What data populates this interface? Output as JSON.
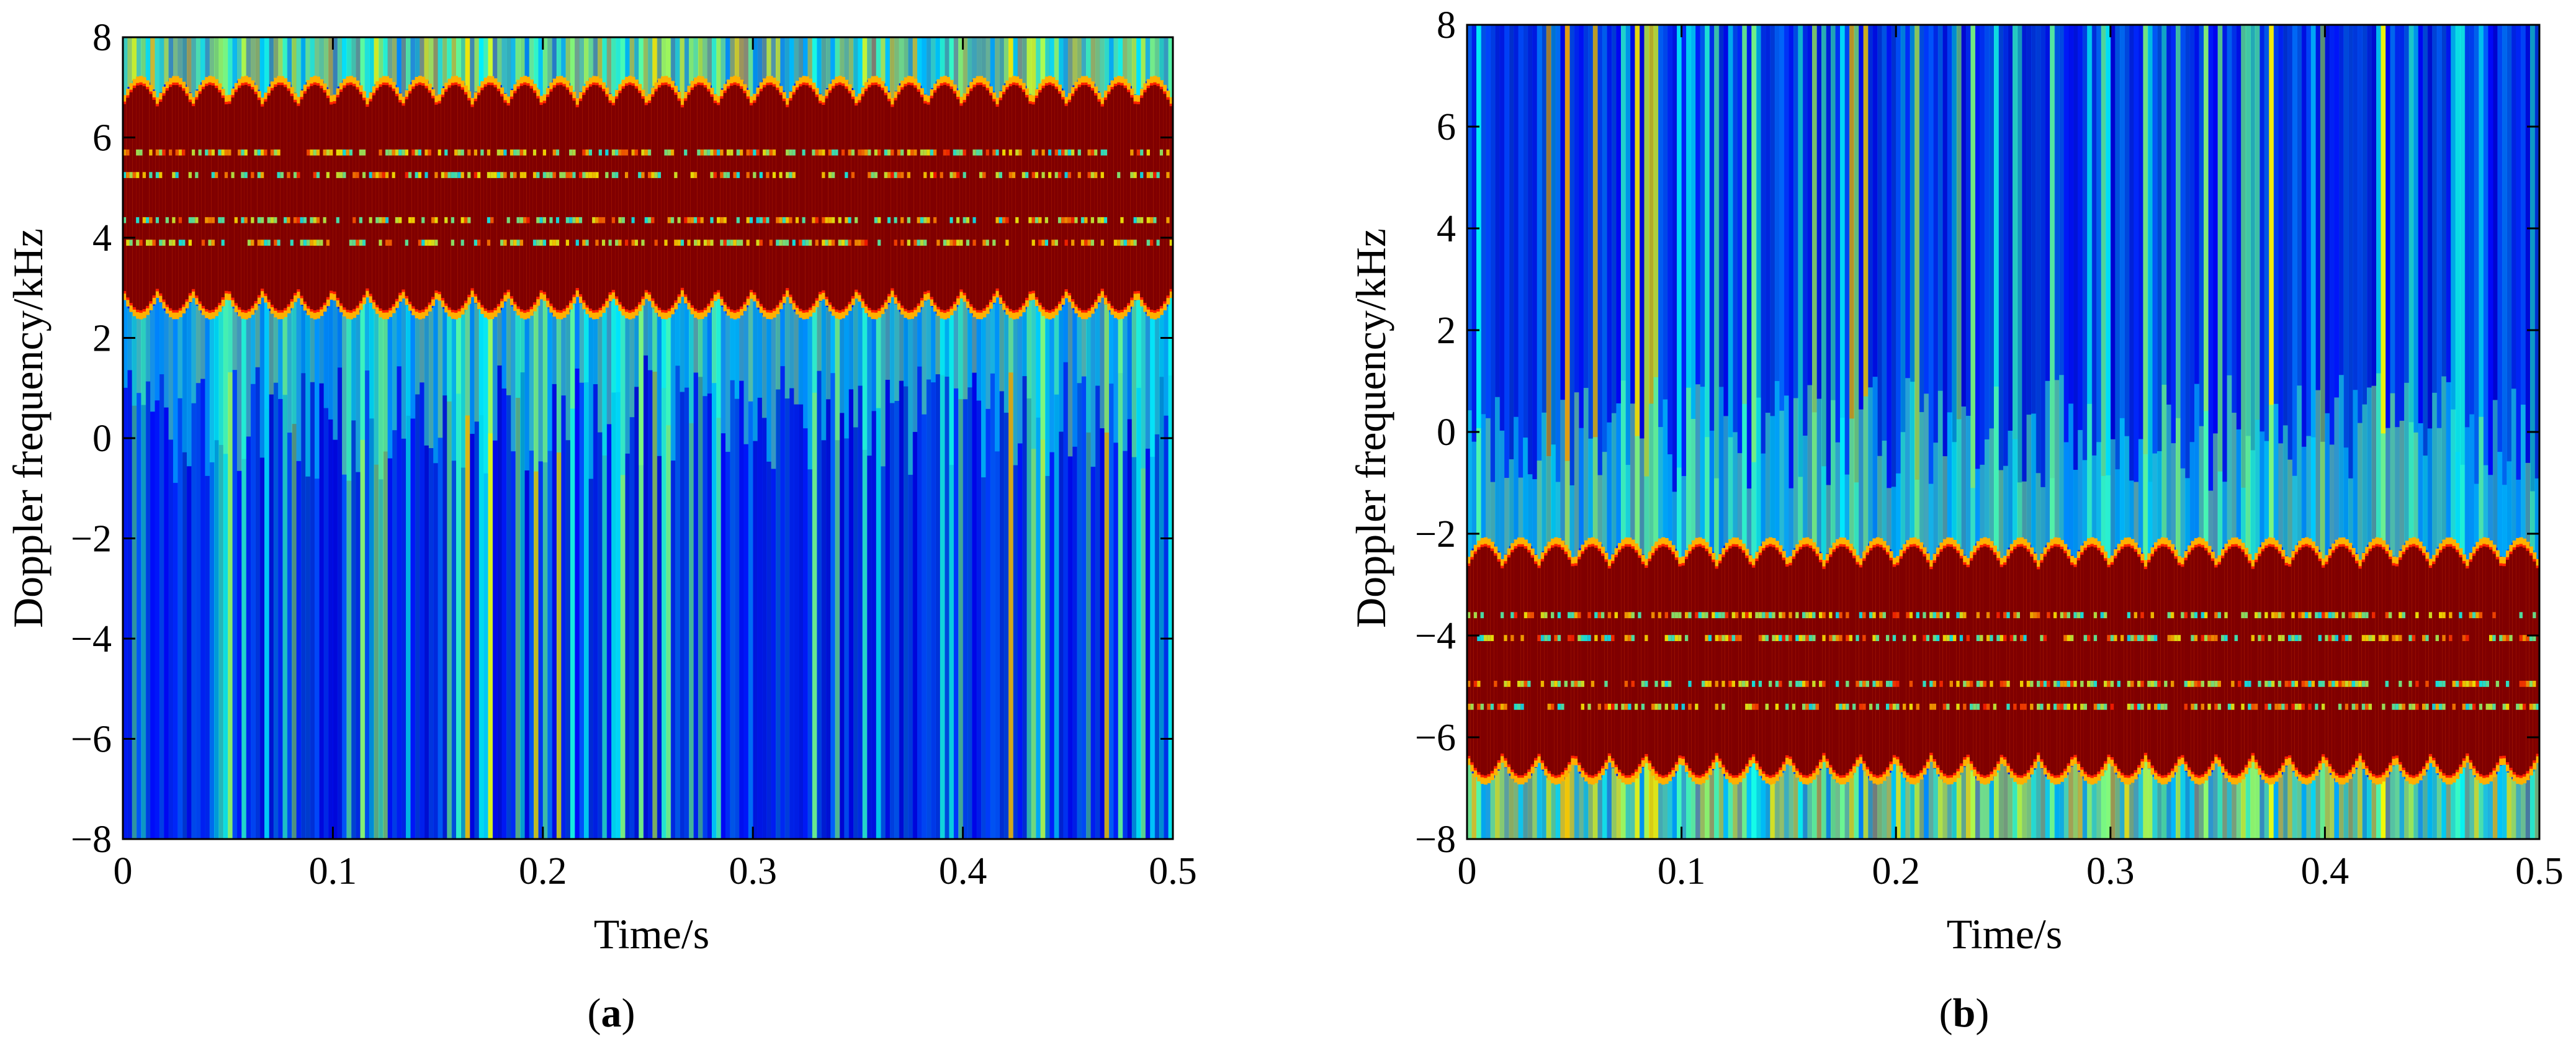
{
  "chart_data": [
    {
      "type": "heatmap",
      "caption": "(a)",
      "caption_letter": "a",
      "xlabel": "Time/s",
      "ylabel": "Doppler frequency/kHz",
      "xlim": [
        0,
        0.5
      ],
      "ylim": [
        -8,
        8
      ],
      "xticks": [
        0,
        0.1,
        0.2,
        0.3,
        0.4,
        0.5
      ],
      "xtick_labels": [
        "0",
        "0.1",
        "0.2",
        "0.3",
        "0.4",
        "0.5"
      ],
      "yticks": [
        -8,
        -6,
        -4,
        -2,
        0,
        2,
        4,
        6,
        8
      ],
      "ytick_labels": [
        "−8",
        "−6",
        "−4",
        "−2",
        "0",
        "2",
        "4",
        "6",
        "8"
      ],
      "colormap": "jet",
      "micro_doppler": {
        "center_khz": 4.8,
        "inner_halfwidth_khz": 0.8,
        "modulation_khz": 0.9,
        "outer_extent_khz": 2.5,
        "period_s": 0.0333,
        "phase": 0.0,
        "noise_side": "above"
      }
    },
    {
      "type": "heatmap",
      "caption": "(b)",
      "caption_letter": "b",
      "xlabel": "Time/s",
      "ylabel": "Doppler frequency/kHz",
      "xlim": [
        0,
        0.5
      ],
      "ylim": [
        -8,
        8
      ],
      "xticks": [
        0,
        0.1,
        0.2,
        0.3,
        0.4,
        0.5
      ],
      "xtick_labels": [
        "0",
        "0.1",
        "0.2",
        "0.3",
        "0.4",
        "0.5"
      ],
      "yticks": [
        -8,
        -6,
        -4,
        -2,
        0,
        2,
        4,
        6,
        8
      ],
      "ytick_labels": [
        "−8",
        "−6",
        "−4",
        "−2",
        "0",
        "2",
        "4",
        "6",
        "8"
      ],
      "colormap": "jet",
      "micro_doppler": {
        "center_khz": -4.5,
        "inner_halfwidth_khz": 0.8,
        "modulation_khz": 0.9,
        "outer_extent_khz": 2.3,
        "period_s": 0.0333,
        "phase": 0.5,
        "noise_side": "below"
      }
    }
  ],
  "colors": {
    "background": "#00008f",
    "jet_dark_red": "#800000"
  }
}
